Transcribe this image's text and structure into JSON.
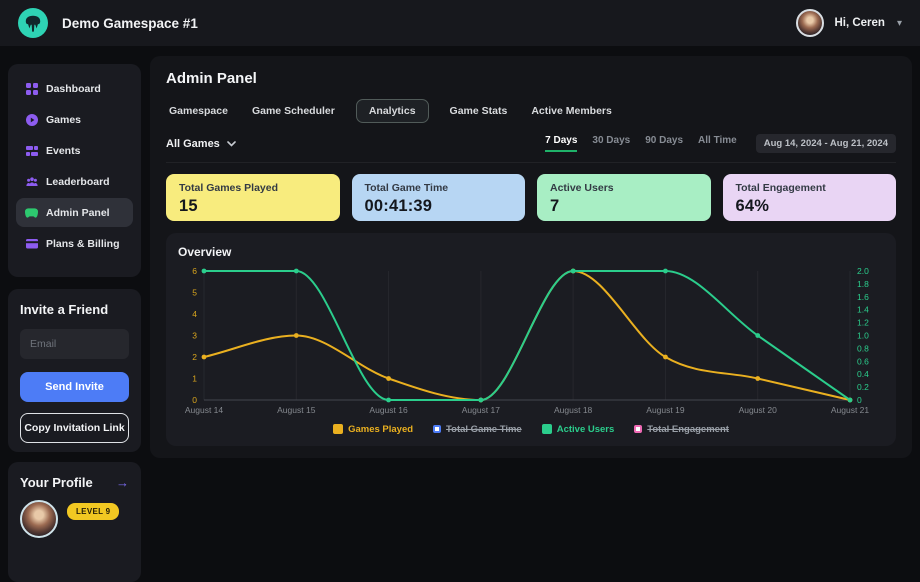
{
  "topbar": {
    "title": "Demo Gamespace #1",
    "greeting": "Hi, Ceren"
  },
  "sidebar": {
    "items": [
      {
        "label": "Dashboard",
        "icon": "dashboard-icon",
        "active": false
      },
      {
        "label": "Games",
        "icon": "games-icon",
        "active": false
      },
      {
        "label": "Events",
        "icon": "events-icon",
        "active": false
      },
      {
        "label": "Leaderboard",
        "icon": "leaderboard-icon",
        "active": false
      },
      {
        "label": "Admin Panel",
        "icon": "admin-panel-icon",
        "active": true
      },
      {
        "label": "Plans & Billing",
        "icon": "billing-icon",
        "active": false
      }
    ]
  },
  "invite": {
    "title": "Invite a Friend",
    "email_placeholder": "Email",
    "send_button": "Send Invite",
    "copy_button": "Copy Invitation Link"
  },
  "profile": {
    "title": "Your Profile",
    "level_badge": "LEVEL 9"
  },
  "main": {
    "title": "Admin Panel",
    "tabs": [
      {
        "label": "Gamespace",
        "active": false
      },
      {
        "label": "Game Scheduler",
        "active": false
      },
      {
        "label": "Analytics",
        "active": true
      },
      {
        "label": "Game Stats",
        "active": false
      },
      {
        "label": "Active Members",
        "active": false
      }
    ],
    "filter": {
      "games_dropdown": "All Games",
      "ranges": [
        {
          "label": "7 Days",
          "active": true
        },
        {
          "label": "30 Days",
          "active": false
        },
        {
          "label": "90 Days",
          "active": false
        },
        {
          "label": "All Time",
          "active": false
        }
      ],
      "date_range": "Aug 14, 2024 - Aug 21, 2024"
    },
    "stats": [
      {
        "label": "Total Games Played",
        "value": "15",
        "bg": "#f8ec7e"
      },
      {
        "label": "Total Game Time",
        "value": "00:41:39",
        "bg": "#b7d6f3"
      },
      {
        "label": "Active Users",
        "value": "7",
        "bg": "#a8eec4"
      },
      {
        "label": "Total Engagement",
        "value": "64%",
        "bg": "#e9d5f4"
      }
    ]
  },
  "chart_data": {
    "type": "line",
    "title": "Overview",
    "categories": [
      "August 14",
      "August 15",
      "August 16",
      "August 17",
      "August 18",
      "August 19",
      "August 20",
      "August 21"
    ],
    "series": [
      {
        "name": "Games Played",
        "color": "#eab020",
        "axis": "left",
        "visible": true,
        "values": [
          2,
          3,
          1,
          0,
          6,
          2,
          1,
          0
        ]
      },
      {
        "name": "Total Game Time",
        "color": "#4d7cf6",
        "axis": "left",
        "visible": false,
        "values": []
      },
      {
        "name": "Active Users",
        "color": "#2bcd8c",
        "axis": "right",
        "visible": true,
        "values": [
          2,
          2,
          0,
          0,
          2,
          2,
          1,
          0
        ]
      },
      {
        "name": "Total Engagement",
        "color": "#ef6ab5",
        "axis": "right",
        "visible": false,
        "values": []
      }
    ],
    "left_axis": {
      "min": 0,
      "max": 6,
      "ticks": [
        0,
        1,
        2,
        3,
        4,
        5,
        6
      ],
      "label_color": "#d9a51d"
    },
    "right_axis": {
      "min": 0,
      "max": 2,
      "ticks": [
        0,
        0.2,
        0.4,
        0.6,
        0.8,
        1,
        1.2,
        1.4,
        1.6,
        1.8,
        2
      ],
      "label_color": "#2bcd8c"
    },
    "x_label_color": "#85898f",
    "grid": "vertical-faint",
    "legend_position": "bottom"
  }
}
